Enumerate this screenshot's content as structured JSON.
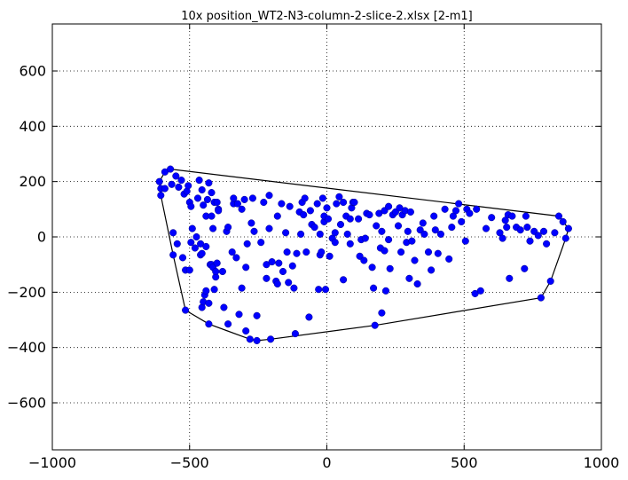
{
  "chart_data": {
    "type": "scatter",
    "title": "10x position_WT2-N3-column-2-slice-2.xlsx   [2-m1]",
    "xlabel": "",
    "ylabel": "",
    "xlim": [
      -1000,
      1000
    ],
    "ylim": [
      -770,
      770
    ],
    "xticks": [
      -1000,
      -500,
      0,
      500,
      1000
    ],
    "yticks": [
      -600,
      -400,
      -200,
      0,
      200,
      400,
      600
    ],
    "xtick_labels": [
      "−1000",
      "−500",
      "0",
      "500",
      "1000"
    ],
    "ytick_labels": [
      "−600",
      "−400",
      "−200",
      "0",
      "200",
      "400",
      "600"
    ],
    "grid": true,
    "point_color": "#0000ff",
    "hull_color": "#000000",
    "points": [
      [
        -610,
        200
      ],
      [
        -605,
        175
      ],
      [
        -605,
        150
      ],
      [
        -590,
        175
      ],
      [
        -590,
        235
      ],
      [
        -570,
        245
      ],
      [
        -565,
        190
      ],
      [
        -560,
        15
      ],
      [
        -560,
        -65
      ],
      [
        -550,
        220
      ],
      [
        -545,
        -25
      ],
      [
        -540,
        180
      ],
      [
        -530,
        205
      ],
      [
        -525,
        -75
      ],
      [
        -520,
        155
      ],
      [
        -515,
        -265
      ],
      [
        -515,
        -120
      ],
      [
        -510,
        165
      ],
      [
        -505,
        185
      ],
      [
        -500,
        125
      ],
      [
        -500,
        -120
      ],
      [
        -495,
        -20
      ],
      [
        -495,
        110
      ],
      [
        -490,
        30
      ],
      [
        -480,
        -40
      ],
      [
        -475,
        0
      ],
      [
        -470,
        140
      ],
      [
        -465,
        205
      ],
      [
        -460,
        -25
      ],
      [
        -460,
        -65
      ],
      [
        -455,
        -255
      ],
      [
        -455,
        -60
      ],
      [
        -455,
        170
      ],
      [
        -450,
        -235
      ],
      [
        -450,
        115
      ],
      [
        -445,
        -210
      ],
      [
        -440,
        75
      ],
      [
        -440,
        -195
      ],
      [
        -440,
        -35
      ],
      [
        -435,
        135
      ],
      [
        -430,
        -315
      ],
      [
        -430,
        195
      ],
      [
        -430,
        -240
      ],
      [
        -425,
        -100
      ],
      [
        -420,
        -100
      ],
      [
        -420,
        160
      ],
      [
        -420,
        75
      ],
      [
        -415,
        30
      ],
      [
        -415,
        -110
      ],
      [
        -410,
        -190
      ],
      [
        -410,
        125
      ],
      [
        -405,
        -145
      ],
      [
        -405,
        -125
      ],
      [
        -400,
        125
      ],
      [
        -400,
        -95
      ],
      [
        -395,
        100
      ],
      [
        -395,
        95
      ],
      [
        -380,
        -125
      ],
      [
        -375,
        -255
      ],
      [
        -365,
        20
      ],
      [
        -360,
        35
      ],
      [
        -360,
        -315
      ],
      [
        -345,
        -55
      ],
      [
        -340,
        120
      ],
      [
        -340,
        140
      ],
      [
        -330,
        -75
      ],
      [
        -325,
        120
      ],
      [
        -320,
        -280
      ],
      [
        -310,
        100
      ],
      [
        -310,
        -185
      ],
      [
        -300,
        135
      ],
      [
        -295,
        -110
      ],
      [
        -295,
        -340
      ],
      [
        -290,
        -25
      ],
      [
        -280,
        -370
      ],
      [
        -275,
        50
      ],
      [
        -270,
        140
      ],
      [
        -265,
        20
      ],
      [
        -255,
        -285
      ],
      [
        -255,
        -375
      ],
      [
        -240,
        -20
      ],
      [
        -230,
        125
      ],
      [
        -220,
        -100
      ],
      [
        -220,
        -150
      ],
      [
        -210,
        150
      ],
      [
        -210,
        30
      ],
      [
        -205,
        -370
      ],
      [
        -200,
        -90
      ],
      [
        -185,
        -160
      ],
      [
        -180,
        75
      ],
      [
        -180,
        -170
      ],
      [
        -175,
        -95
      ],
      [
        -165,
        120
      ],
      [
        -160,
        -125
      ],
      [
        -150,
        15
      ],
      [
        -145,
        -55
      ],
      [
        -140,
        -165
      ],
      [
        -135,
        110
      ],
      [
        -125,
        -105
      ],
      [
        -120,
        -185
      ],
      [
        -115,
        -350
      ],
      [
        -110,
        -60
      ],
      [
        -100,
        90
      ],
      [
        -95,
        10
      ],
      [
        -90,
        125
      ],
      [
        -85,
        80
      ],
      [
        -80,
        140
      ],
      [
        -75,
        -55
      ],
      [
        -65,
        -290
      ],
      [
        -60,
        95
      ],
      [
        -55,
        45
      ],
      [
        -45,
        35
      ],
      [
        -35,
        120
      ],
      [
        -30,
        -190
      ],
      [
        -25,
        10
      ],
      [
        -25,
        -65
      ],
      [
        -20,
        -55
      ],
      [
        -15,
        140
      ],
      [
        -10,
        55
      ],
      [
        -10,
        75
      ],
      [
        -5,
        -190
      ],
      [
        0,
        105
      ],
      [
        5,
        65
      ],
      [
        10,
        -70
      ],
      [
        20,
        -5
      ],
      [
        30,
        15
      ],
      [
        30,
        -20
      ],
      [
        35,
        120
      ],
      [
        45,
        145
      ],
      [
        50,
        45
      ],
      [
        60,
        125
      ],
      [
        60,
        -155
      ],
      [
        70,
        75
      ],
      [
        75,
        10
      ],
      [
        85,
        -25
      ],
      [
        85,
        65
      ],
      [
        90,
        105
      ],
      [
        95,
        125
      ],
      [
        100,
        125
      ],
      [
        115,
        65
      ],
      [
        120,
        -70
      ],
      [
        125,
        -10
      ],
      [
        135,
        -85
      ],
      [
        140,
        -5
      ],
      [
        145,
        85
      ],
      [
        155,
        80
      ],
      [
        165,
        -110
      ],
      [
        170,
        -185
      ],
      [
        175,
        -320
      ],
      [
        180,
        40
      ],
      [
        190,
        85
      ],
      [
        195,
        -40
      ],
      [
        200,
        -275
      ],
      [
        200,
        20
      ],
      [
        210,
        -50
      ],
      [
        210,
        95
      ],
      [
        215,
        -195
      ],
      [
        225,
        -10
      ],
      [
        225,
        110
      ],
      [
        230,
        -115
      ],
      [
        240,
        80
      ],
      [
        250,
        90
      ],
      [
        260,
        40
      ],
      [
        265,
        105
      ],
      [
        270,
        -55
      ],
      [
        275,
        80
      ],
      [
        285,
        95
      ],
      [
        290,
        -20
      ],
      [
        295,
        20
      ],
      [
        300,
        -150
      ],
      [
        305,
        90
      ],
      [
        310,
        -15
      ],
      [
        320,
        -85
      ],
      [
        330,
        -170
      ],
      [
        340,
        25
      ],
      [
        350,
        50
      ],
      [
        355,
        10
      ],
      [
        370,
        -55
      ],
      [
        380,
        -120
      ],
      [
        390,
        75
      ],
      [
        395,
        25
      ],
      [
        405,
        -60
      ],
      [
        415,
        10
      ],
      [
        430,
        100
      ],
      [
        445,
        -80
      ],
      [
        455,
        35
      ],
      [
        460,
        75
      ],
      [
        470,
        95
      ],
      [
        480,
        120
      ],
      [
        490,
        55
      ],
      [
        505,
        -15
      ],
      [
        510,
        100
      ],
      [
        520,
        85
      ],
      [
        540,
        -205
      ],
      [
        545,
        100
      ],
      [
        560,
        -195
      ],
      [
        580,
        30
      ],
      [
        600,
        70
      ],
      [
        630,
        15
      ],
      [
        640,
        -5
      ],
      [
        650,
        60
      ],
      [
        655,
        35
      ],
      [
        660,
        80
      ],
      [
        665,
        -150
      ],
      [
        675,
        75
      ],
      [
        690,
        35
      ],
      [
        705,
        25
      ],
      [
        720,
        -115
      ],
      [
        725,
        75
      ],
      [
        730,
        35
      ],
      [
        740,
        -15
      ],
      [
        755,
        20
      ],
      [
        770,
        5
      ],
      [
        780,
        -220
      ],
      [
        790,
        20
      ],
      [
        800,
        -25
      ],
      [
        815,
        -160
      ],
      [
        830,
        15
      ],
      [
        845,
        75
      ],
      [
        860,
        55
      ],
      [
        870,
        -5
      ],
      [
        880,
        30
      ]
    ],
    "hull": [
      [
        -610,
        200
      ],
      [
        -590,
        235
      ],
      [
        -570,
        245
      ],
      [
        845,
        75
      ],
      [
        880,
        30
      ],
      [
        870,
        -5
      ],
      [
        815,
        -160
      ],
      [
        780,
        -220
      ],
      [
        175,
        -320
      ],
      [
        -205,
        -370
      ],
      [
        -255,
        -375
      ],
      [
        -280,
        -370
      ],
      [
        -430,
        -315
      ],
      [
        -515,
        -265
      ],
      [
        -560,
        -65
      ],
      [
        -605,
        150
      ]
    ]
  }
}
